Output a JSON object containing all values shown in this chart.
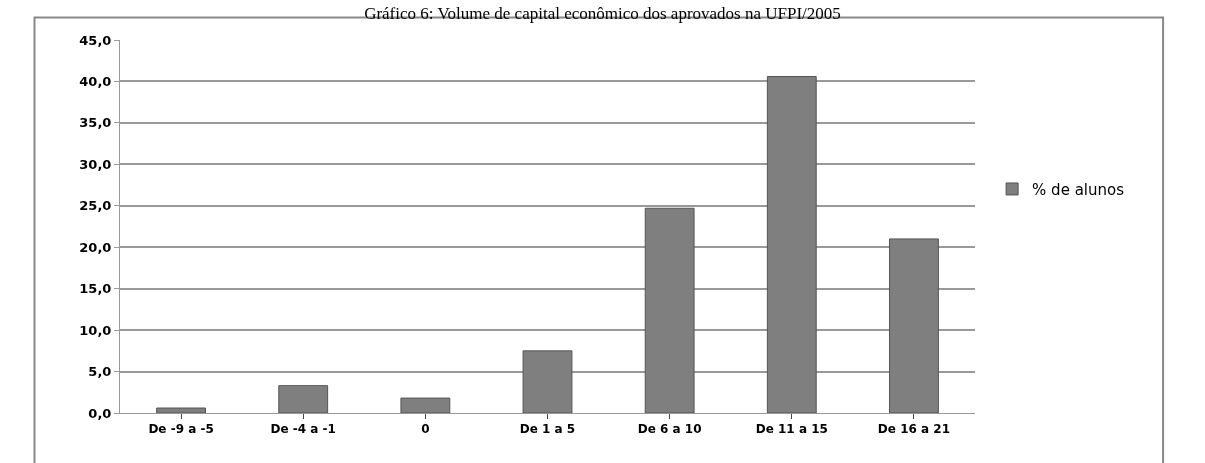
{
  "chart_data": {
    "type": "bar",
    "title": "Gráfico 6: Volume de capital econômico dos aprovados na UFPI/2005",
    "categories": [
      "De -9 a -5",
      "De -4 a -1",
      "0",
      "De 1 a 5",
      "De 6 a 10",
      "De 11 a 15",
      "De 16 a 21"
    ],
    "series": [
      {
        "name": "% de alunos",
        "color": "#7f7f7f",
        "values": [
          0.6,
          3.3,
          1.8,
          7.5,
          24.7,
          40.6,
          21.0
        ]
      }
    ],
    "ylim": [
      0,
      45
    ],
    "yticks": [
      {
        "value": 0,
        "label": "0,0"
      },
      {
        "value": 5,
        "label": "5,0"
      },
      {
        "value": 10,
        "label": "10,0"
      },
      {
        "value": 15,
        "label": "15,0"
      },
      {
        "value": 20,
        "label": "20,0"
      },
      {
        "value": 25,
        "label": "25,0"
      },
      {
        "value": 30,
        "label": "30,0"
      },
      {
        "value": 35,
        "label": "35,0"
      },
      {
        "value": 40,
        "label": "40,0"
      },
      {
        "value": 45,
        "label": "45,0"
      }
    ],
    "grid": "y",
    "legend": "right"
  }
}
